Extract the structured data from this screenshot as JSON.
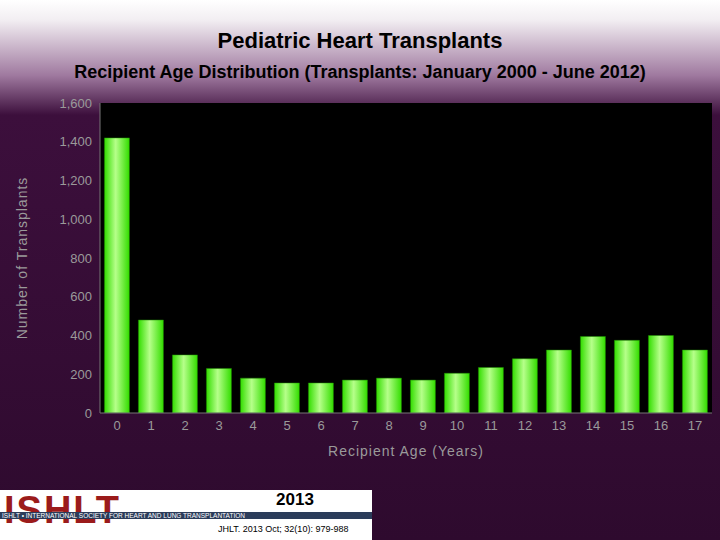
{
  "chart_data": {
    "type": "bar",
    "title": "Pediatric Heart Transplants",
    "subtitle": "Recipient Age Distribution (Transplants: January 2000 - June 2012)",
    "x_label": "Recipient Age (Years)",
    "y_label": "Number of Transplants",
    "categories": [
      "0",
      "1",
      "2",
      "3",
      "4",
      "5",
      "6",
      "7",
      "8",
      "9",
      "10",
      "11",
      "12",
      "13",
      "14",
      "15",
      "16",
      "17"
    ],
    "values": [
      1420,
      480,
      300,
      230,
      180,
      155,
      155,
      170,
      180,
      170,
      205,
      235,
      280,
      325,
      395,
      375,
      400,
      325
    ],
    "color": "#33dd00",
    "ylim": [
      0,
      1600
    ],
    "yticks": [
      0,
      200,
      400,
      600,
      800,
      {
        "value": 1000,
        "label": "1,000"
      },
      {
        "value": 1200,
        "label": "1,200"
      },
      {
        "value": 1400,
        "label": "1,400"
      },
      {
        "value": 1600,
        "label": "1,600"
      }
    ],
    "grid": false
  },
  "footer": {
    "logo": "ISHLT",
    "society": "ISHLT • INTERNATIONAL SOCIETY FOR HEART AND LUNG TRANSPLANTATION",
    "year": "2013",
    "citation": "JHLT. 2013 Oct; 32(10): 979-988"
  }
}
